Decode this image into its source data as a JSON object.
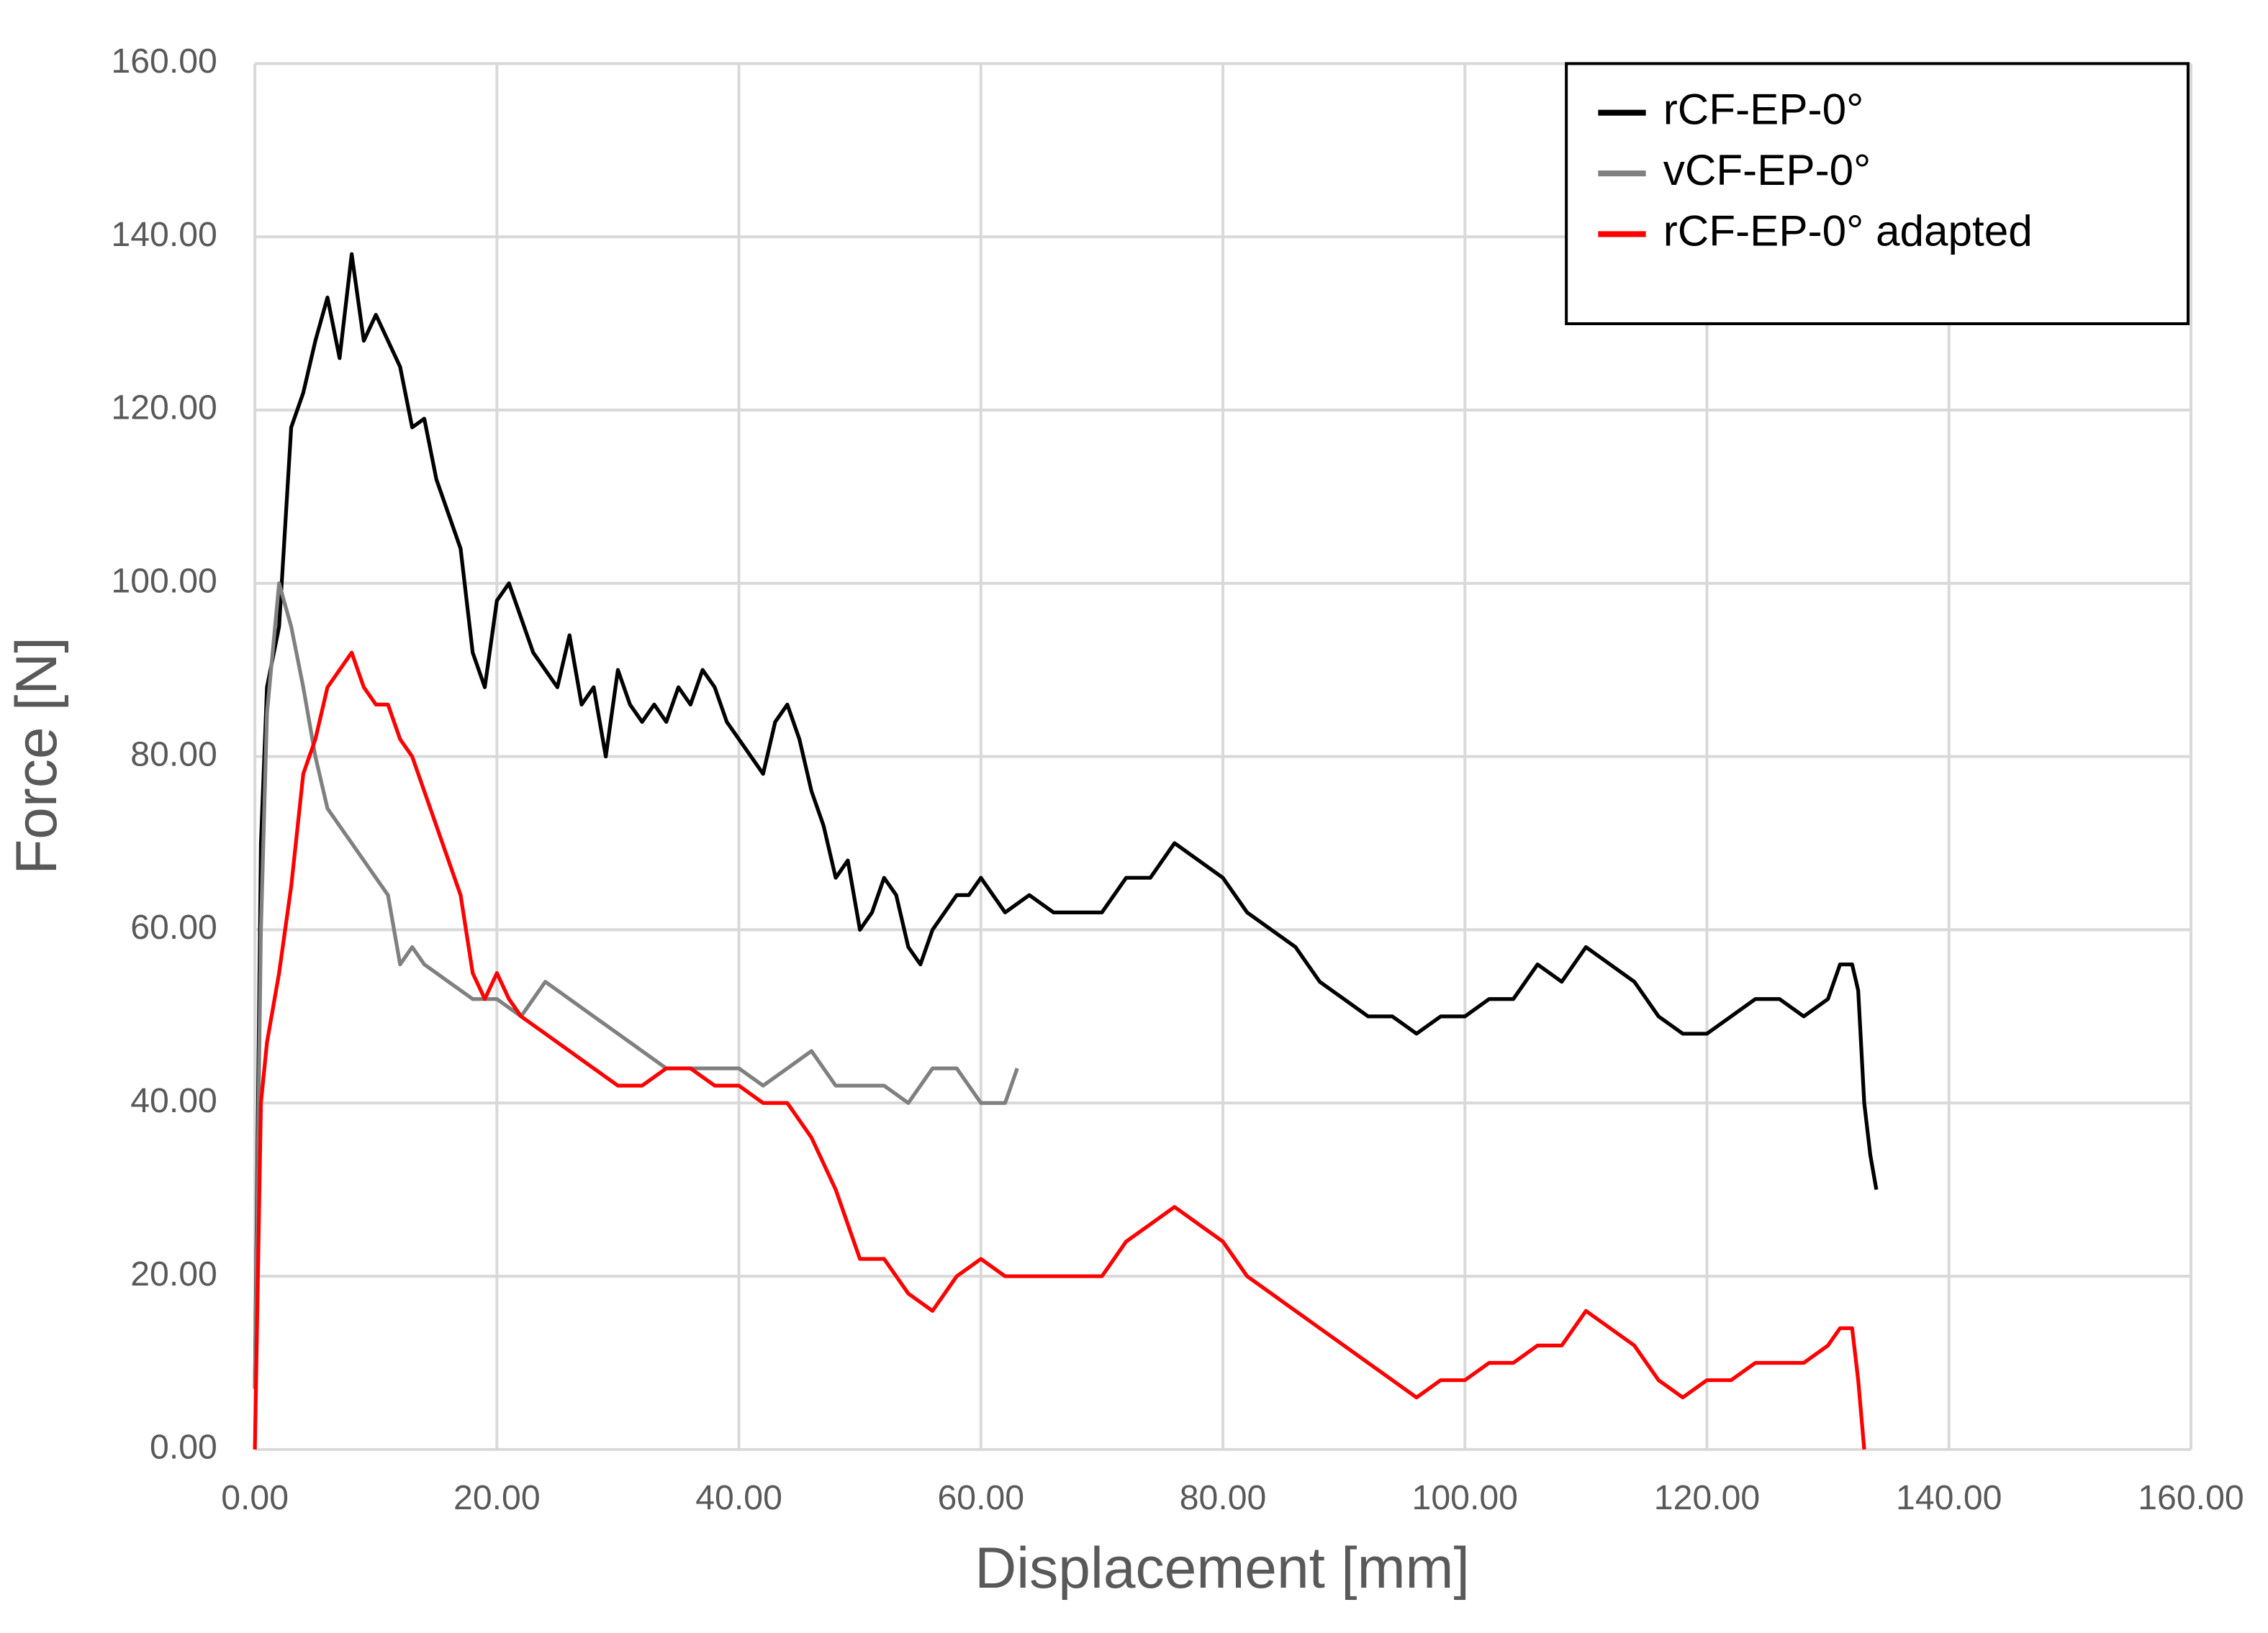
{
  "chart_data": {
    "type": "line",
    "x_label": "Displacement [mm]",
    "y_label": "Force [N]",
    "xlim": [
      0,
      160
    ],
    "ylim": [
      0,
      160
    ],
    "xticks": [
      {
        "value": 0,
        "label": "0.00"
      },
      {
        "value": 20,
        "label": "20.00"
      },
      {
        "value": 40,
        "label": "40.00"
      },
      {
        "value": 60,
        "label": "60.00"
      },
      {
        "value": 80,
        "label": "80.00"
      },
      {
        "value": 100,
        "label": "100.00"
      },
      {
        "value": 120,
        "label": "120.00"
      },
      {
        "value": 140,
        "label": "140.00"
      },
      {
        "value": 160,
        "label": "160.00"
      }
    ],
    "yticks": [
      {
        "value": 0,
        "label": "0.00"
      },
      {
        "value": 20,
        "label": "20.00"
      },
      {
        "value": 40,
        "label": "40.00"
      },
      {
        "value": 60,
        "label": "60.00"
      },
      {
        "value": 80,
        "label": "80.00"
      },
      {
        "value": 100,
        "label": "100.00"
      },
      {
        "value": 120,
        "label": "120.00"
      },
      {
        "value": 140,
        "label": "140.00"
      },
      {
        "value": 160,
        "label": "160.00"
      }
    ],
    "grid": true,
    "legend": "upper right",
    "series": [
      {
        "name": "rCF-EP-0°",
        "color": "#000000",
        "x": [
          0,
          0.5,
          1,
          2,
          3,
          4,
          5,
          6,
          7,
          8,
          9,
          10,
          11,
          12,
          13,
          14,
          15,
          16,
          17,
          18,
          19,
          20,
          21,
          22,
          23,
          24,
          25,
          26,
          27,
          28,
          29,
          30,
          31,
          32,
          33,
          34,
          35,
          36,
          37,
          38,
          39,
          40,
          41,
          42,
          43,
          44,
          45,
          46,
          47,
          48,
          49,
          50,
          51,
          52,
          53,
          54,
          55,
          56,
          57,
          58,
          59,
          60,
          62,
          64,
          66,
          68,
          70,
          72,
          74,
          76,
          78,
          80,
          82,
          84,
          86,
          88,
          90,
          92,
          94,
          96,
          98,
          100,
          102,
          104,
          106,
          108,
          110,
          112,
          114,
          116,
          118,
          120,
          122,
          124,
          126,
          128,
          130,
          131,
          132,
          132.5,
          133,
          133.5,
          134
        ],
        "values": [
          7,
          70,
          88,
          95,
          118,
          122,
          128,
          133,
          126,
          138,
          128,
          131,
          128,
          125,
          118,
          119,
          112,
          108,
          104,
          92,
          88,
          98,
          100,
          96,
          92,
          90,
          88,
          94,
          86,
          88,
          80,
          90,
          86,
          84,
          86,
          84,
          88,
          86,
          90,
          88,
          84,
          82,
          80,
          78,
          84,
          86,
          82,
          76,
          72,
          66,
          68,
          60,
          62,
          66,
          64,
          58,
          56,
          60,
          62,
          64,
          64,
          66,
          62,
          64,
          62,
          62,
          62,
          66,
          66,
          70,
          68,
          66,
          62,
          60,
          58,
          54,
          52,
          50,
          50,
          48,
          50,
          50,
          52,
          52,
          56,
          54,
          58,
          56,
          54,
          50,
          48,
          48,
          50,
          52,
          52,
          50,
          52,
          56,
          56,
          53,
          40,
          34,
          30
        ]
      },
      {
        "name": "vCF-EP-0°",
        "color": "#808080",
        "x": [
          0,
          0.5,
          1,
          2,
          3,
          4,
          5,
          6,
          7,
          8,
          9,
          10,
          11,
          12,
          13,
          14,
          15,
          16,
          18,
          20,
          22,
          24,
          26,
          28,
          30,
          32,
          34,
          36,
          38,
          40,
          42,
          44,
          46,
          48,
          50,
          52,
          54,
          56,
          58,
          60,
          62,
          63
        ],
        "values": [
          7,
          60,
          85,
          100,
          95,
          88,
          80,
          74,
          72,
          70,
          68,
          66,
          64,
          56,
          58,
          56,
          55,
          54,
          52,
          52,
          50,
          54,
          52,
          50,
          48,
          46,
          44,
          44,
          44,
          44,
          42,
          44,
          46,
          42,
          42,
          42,
          40,
          44,
          44,
          40,
          40,
          44
        ]
      },
      {
        "name": "rCF-EP-0° adapted",
        "color": "#ff0000",
        "x": [
          0,
          0.5,
          1,
          2,
          3,
          4,
          5,
          6,
          7,
          8,
          9,
          10,
          11,
          12,
          13,
          14,
          15,
          16,
          17,
          18,
          19,
          20,
          21,
          22,
          24,
          26,
          28,
          30,
          32,
          34,
          36,
          38,
          40,
          42,
          44,
          46,
          48,
          50,
          52,
          54,
          56,
          58,
          60,
          62,
          64,
          66,
          68,
          70,
          72,
          74,
          76,
          78,
          80,
          82,
          84,
          86,
          88,
          90,
          92,
          94,
          96,
          98,
          100,
          102,
          104,
          106,
          108,
          110,
          112,
          114,
          116,
          118,
          120,
          122,
          124,
          126,
          128,
          130,
          131,
          132,
          132.5,
          133
        ],
        "values": [
          0,
          40,
          47,
          55,
          65,
          78,
          82,
          88,
          90,
          92,
          88,
          86,
          86,
          82,
          80,
          76,
          72,
          68,
          64,
          55,
          52,
          55,
          52,
          50,
          48,
          46,
          44,
          42,
          42,
          44,
          44,
          42,
          42,
          40,
          40,
          36,
          30,
          22,
          22,
          18,
          16,
          20,
          22,
          20,
          20,
          20,
          20,
          20,
          24,
          26,
          28,
          26,
          24,
          20,
          18,
          16,
          14,
          12,
          10,
          8,
          6,
          8,
          8,
          10,
          10,
          12,
          12,
          16,
          14,
          12,
          8,
          6,
          8,
          8,
          10,
          10,
          10,
          12,
          14,
          14,
          8,
          0
        ]
      }
    ]
  }
}
